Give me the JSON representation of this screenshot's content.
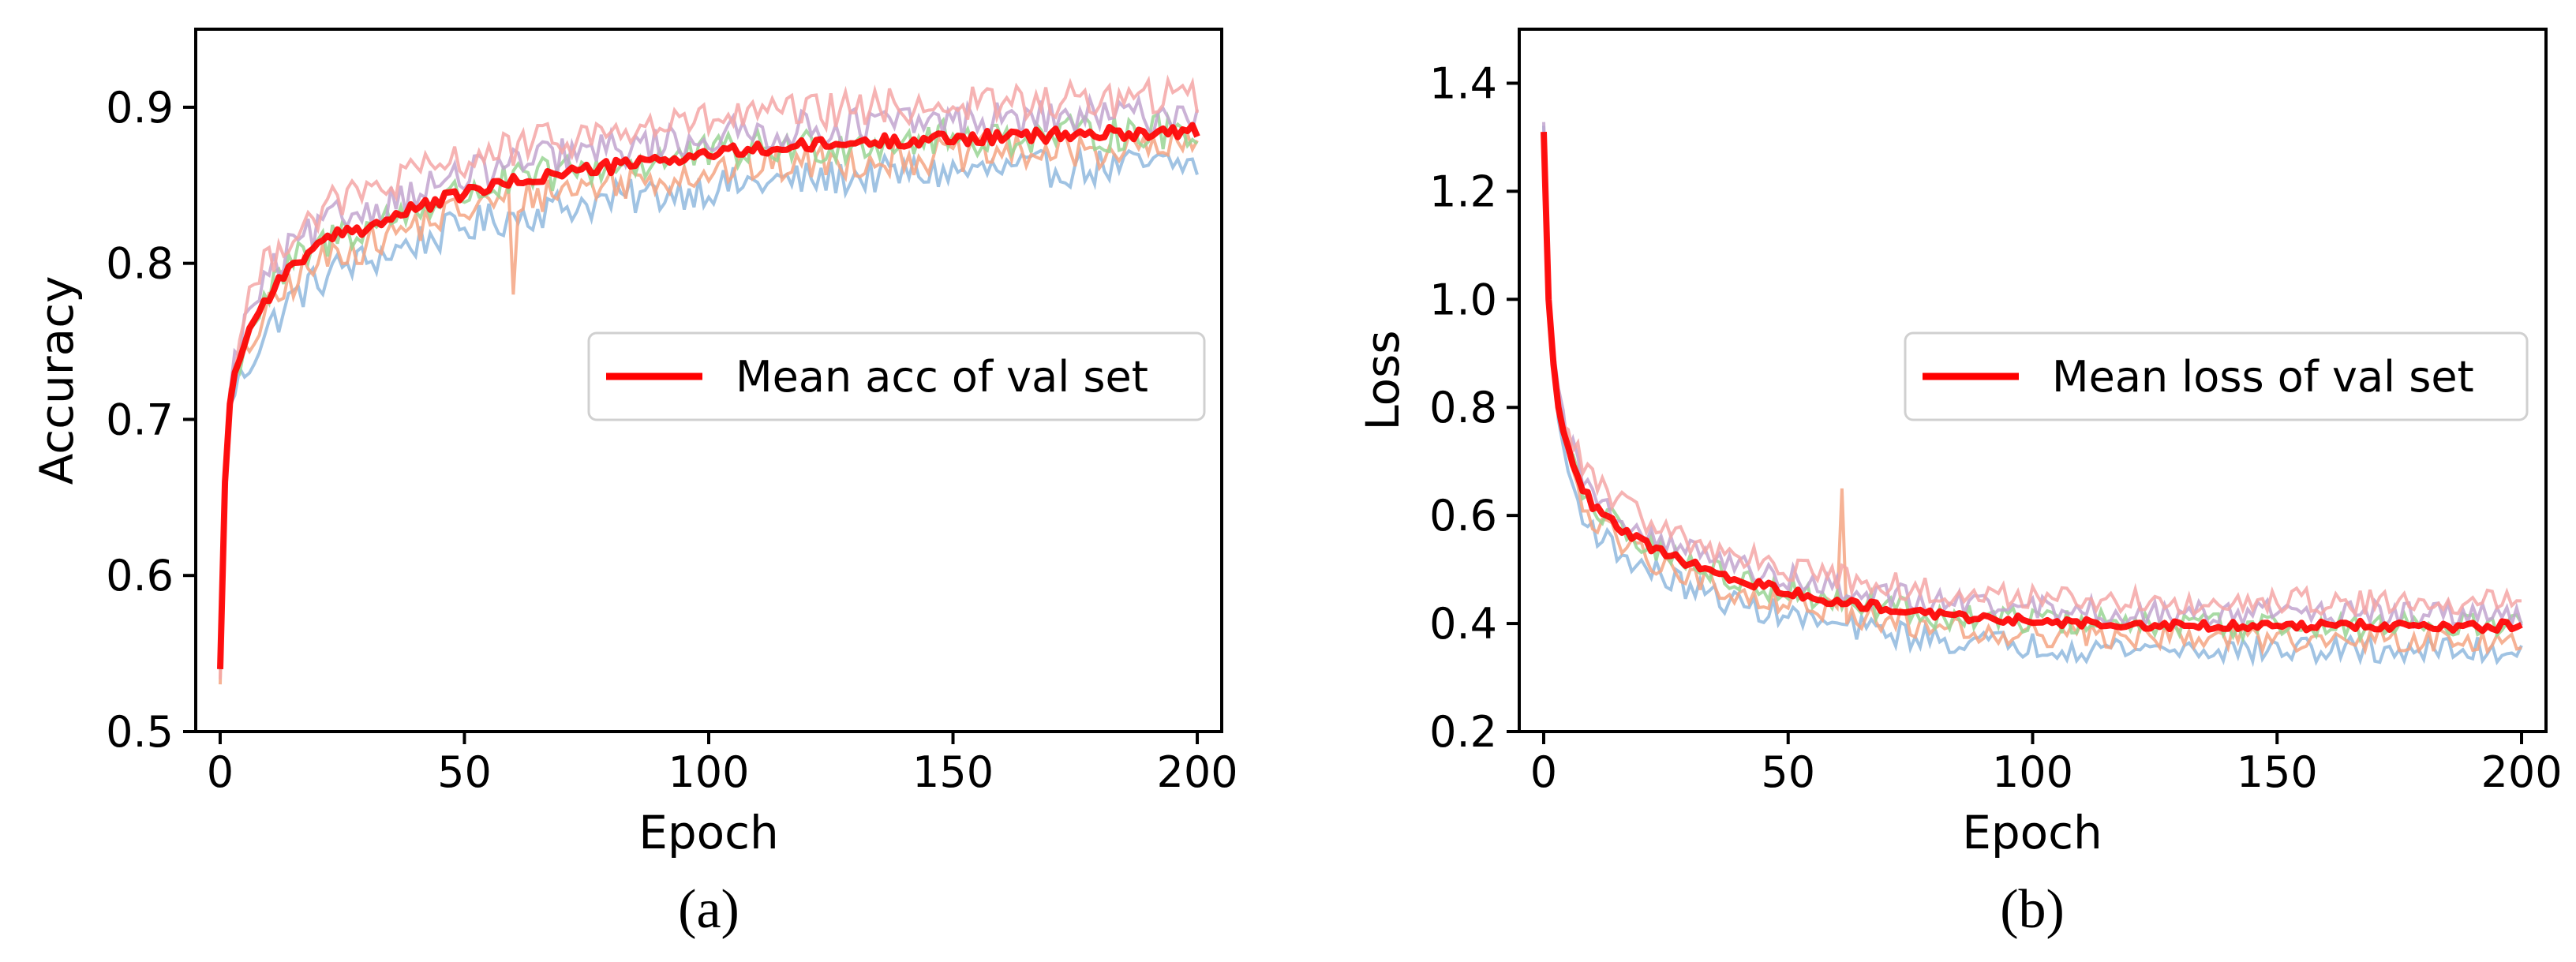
{
  "figure": {
    "panels": [
      "(a)",
      "(b)"
    ]
  },
  "chart_data": [
    {
      "id": "a",
      "type": "line",
      "panel_label": "(a)",
      "title": "",
      "xlabel": "Epoch",
      "ylabel": "Accuracy",
      "xlim": [
        -5,
        205
      ],
      "ylim": [
        0.5,
        0.95
      ],
      "xticks": [
        0,
        50,
        100,
        150,
        200
      ],
      "xtick_labels": [
        "0",
        "50",
        "100",
        "150",
        "200"
      ],
      "yticks": [
        0.5,
        0.6,
        0.7,
        0.8,
        0.9
      ],
      "ytick_labels": [
        "0.5",
        "0.6",
        "0.7",
        "0.8",
        "0.9"
      ],
      "legend": {
        "placement": "center-right",
        "entries": [
          "Mean acc of val set"
        ]
      },
      "mean_color": "#ff0000",
      "background_colors": [
        "#8fb8de",
        "#f4a582",
        "#99d594",
        "#c2a5cf",
        "#f4a6a6"
      ],
      "mean_series": {
        "name": "Mean acc of val set",
        "x": [
          0,
          1,
          2,
          3,
          5,
          7,
          10,
          15,
          20,
          25,
          30,
          40,
          50,
          60,
          70,
          80,
          90,
          100,
          110,
          120,
          130,
          140,
          150,
          160,
          170,
          180,
          190,
          200
        ],
        "y": [
          0.54,
          0.66,
          0.71,
          0.73,
          0.75,
          0.765,
          0.78,
          0.8,
          0.81,
          0.82,
          0.823,
          0.835,
          0.845,
          0.852,
          0.858,
          0.862,
          0.866,
          0.87,
          0.873,
          0.875,
          0.877,
          0.879,
          0.88,
          0.881,
          0.882,
          0.883,
          0.884,
          0.885
        ]
      },
      "noisy_runs": 5,
      "noise_amplitude": 0.012,
      "spikes": [
        {
          "x": 60,
          "y": 0.78
        }
      ]
    },
    {
      "id": "b",
      "type": "line",
      "panel_label": "(b)",
      "title": "",
      "xlabel": "Epoch",
      "ylabel": "Loss",
      "xlim": [
        -5,
        205
      ],
      "ylim": [
        0.2,
        1.5
      ],
      "xticks": [
        0,
        50,
        100,
        150,
        200
      ],
      "xtick_labels": [
        "0",
        "50",
        "100",
        "150",
        "200"
      ],
      "yticks": [
        0.2,
        0.4,
        0.6,
        0.8,
        1.0,
        1.2,
        1.4
      ],
      "ytick_labels": [
        "0.2",
        "0.4",
        "0.6",
        "0.8",
        "1.0",
        "1.2",
        "1.4"
      ],
      "legend": {
        "placement": "center-right",
        "entries": [
          "Mean loss of val set"
        ]
      },
      "mean_color": "#ff0000",
      "background_colors": [
        "#8fb8de",
        "#f4a582",
        "#99d594",
        "#c2a5cf",
        "#f4a6a6"
      ],
      "mean_series": {
        "name": "Mean loss of val set",
        "x": [
          0,
          1,
          2,
          3,
          5,
          7,
          10,
          15,
          20,
          25,
          30,
          40,
          50,
          60,
          70,
          80,
          90,
          100,
          110,
          120,
          130,
          140,
          150,
          160,
          170,
          180,
          190,
          200
        ],
        "y": [
          1.31,
          1.0,
          0.88,
          0.8,
          0.72,
          0.67,
          0.62,
          0.58,
          0.55,
          0.53,
          0.51,
          0.48,
          0.46,
          0.44,
          0.43,
          0.415,
          0.41,
          0.405,
          0.4,
          0.4,
          0.398,
          0.397,
          0.397,
          0.396,
          0.396,
          0.395,
          0.395,
          0.395
        ]
      },
      "noisy_runs": 5,
      "noise_amplitude": 0.025,
      "spikes": [
        {
          "x": 61,
          "y": 0.65
        }
      ]
    }
  ]
}
